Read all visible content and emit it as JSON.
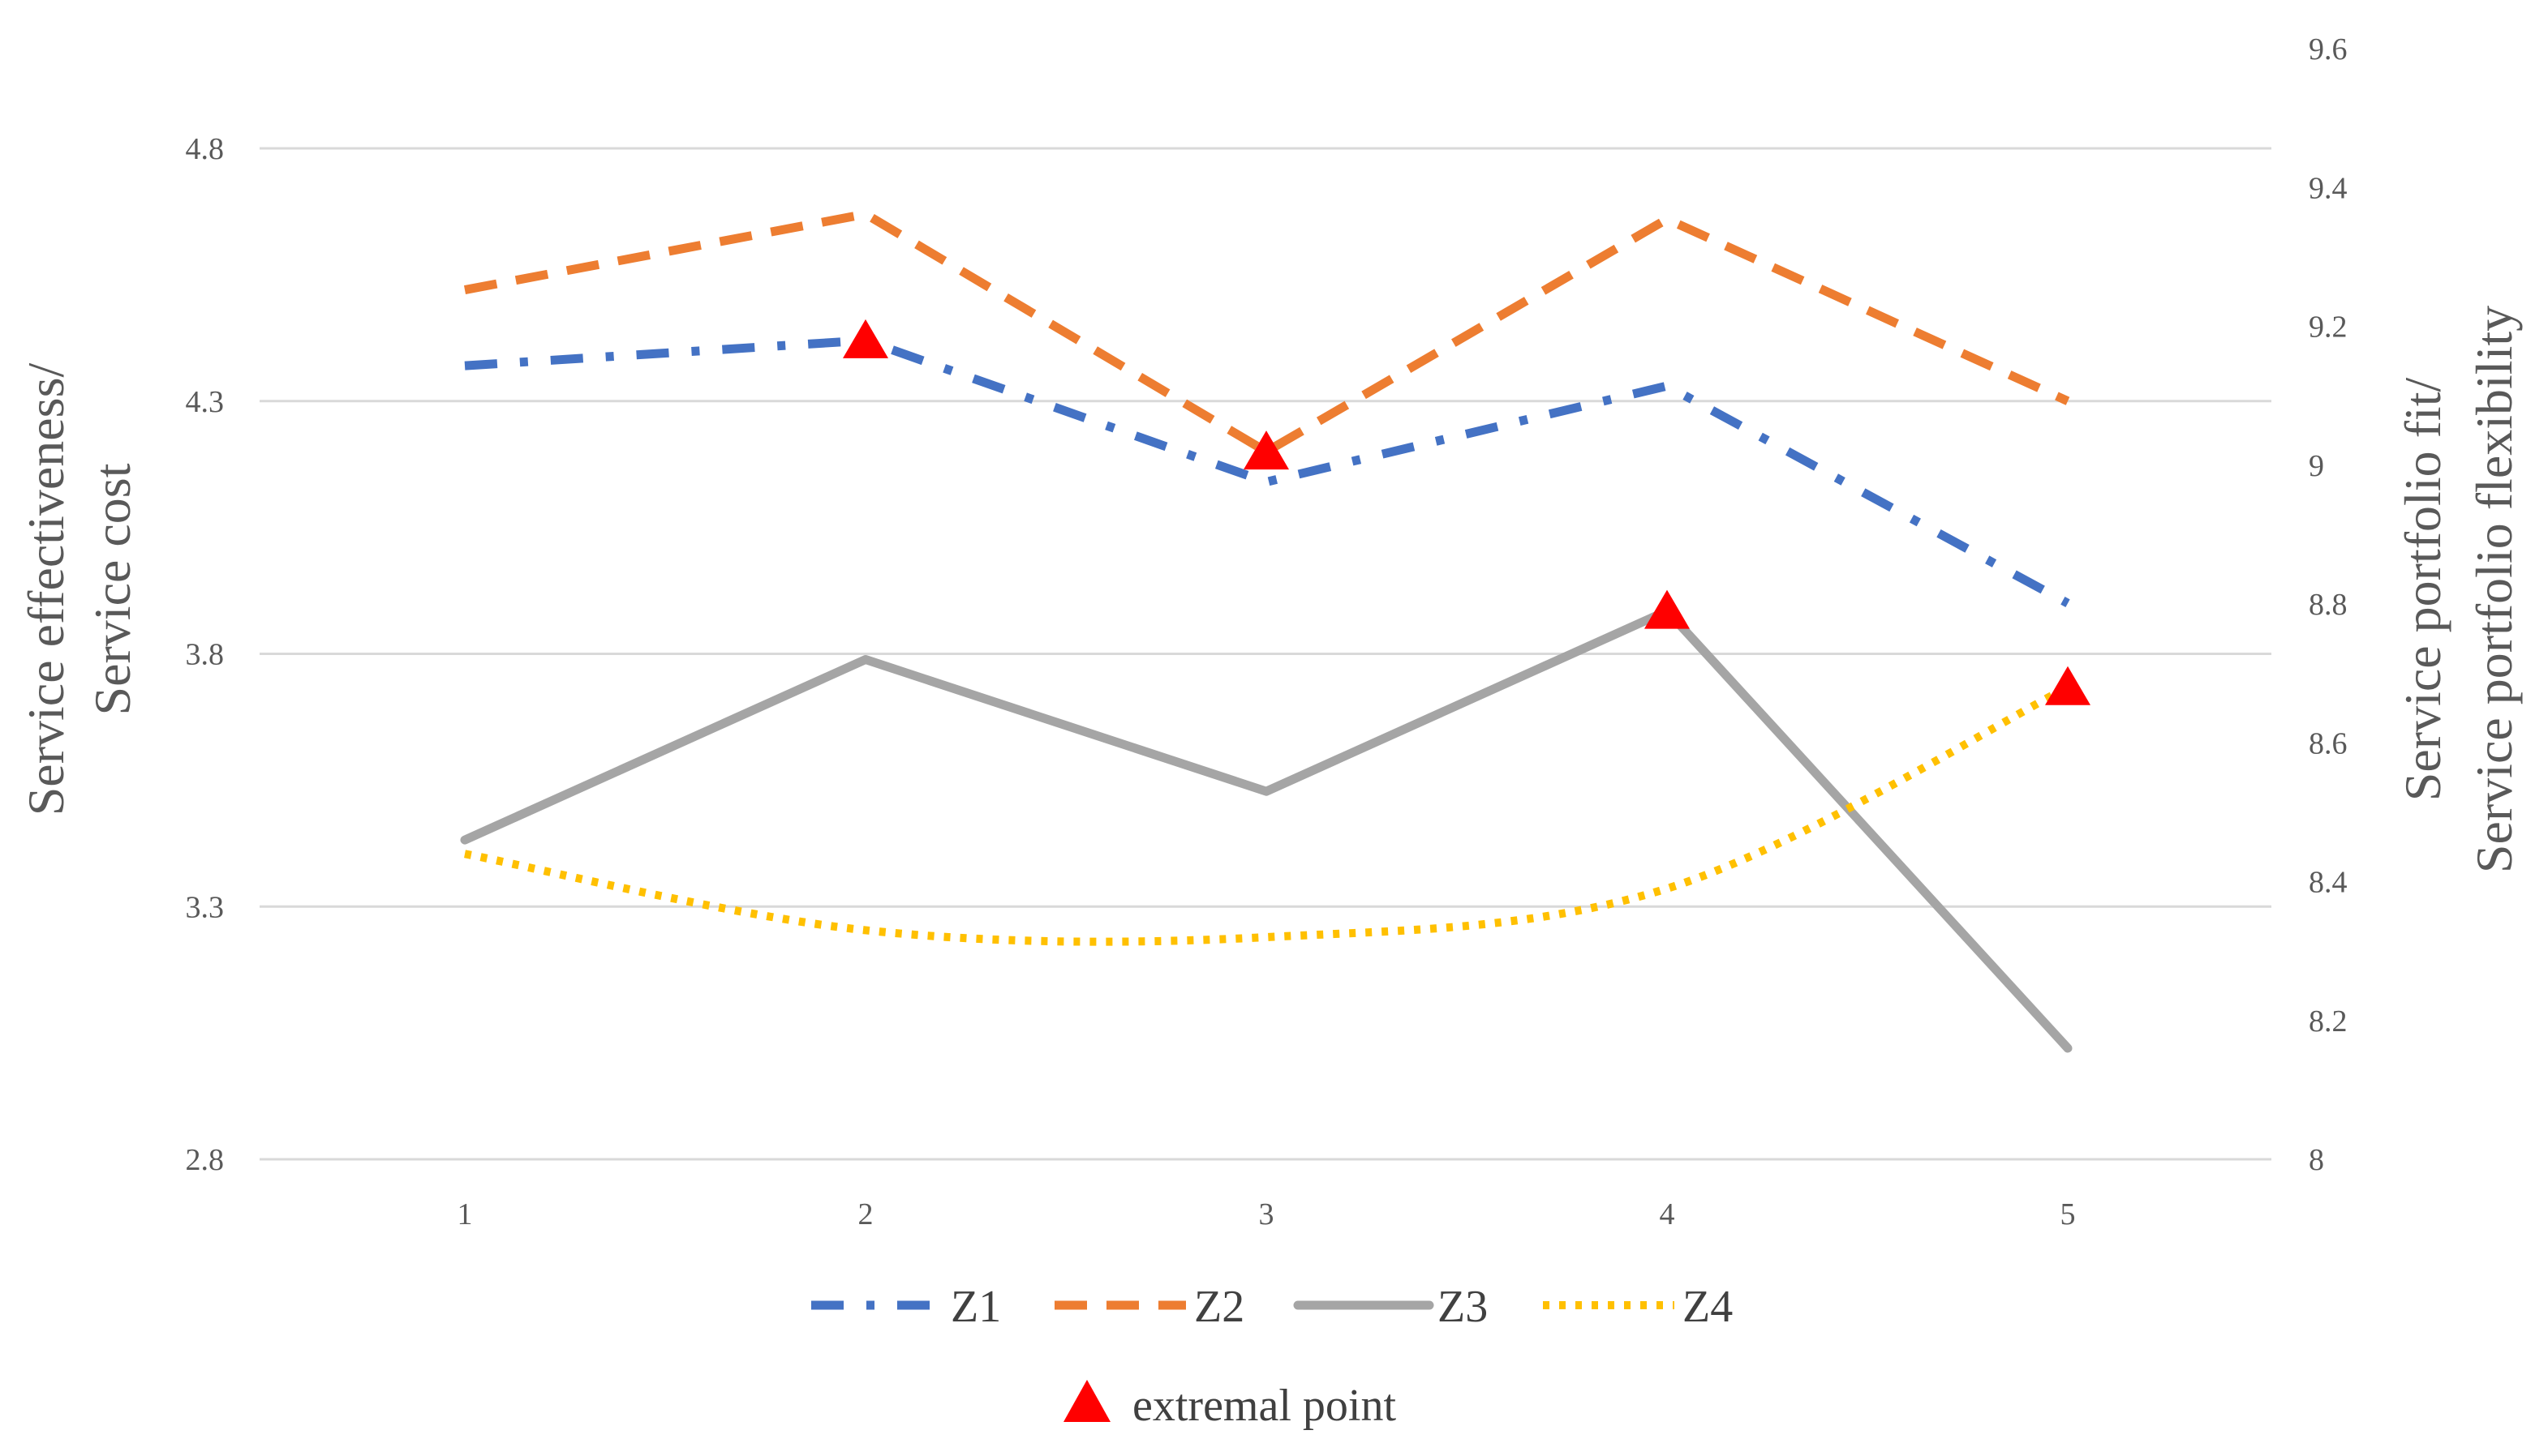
{
  "chart_data": {
    "type": "line",
    "categories": [
      "1",
      "2",
      "3",
      "4",
      "5"
    ],
    "left_axis": {
      "title_lines": [
        "Service effectiveness/",
        "Service cost"
      ],
      "range": [
        2.8,
        4.8
      ],
      "ticks": [
        2.8,
        3.3,
        3.8,
        4.3,
        4.8
      ],
      "tick_labels": [
        "2.8",
        "3.3",
        "3.8",
        "4.3",
        "4.8"
      ]
    },
    "right_axis": {
      "title_lines": [
        "Service portfolio fit/",
        "Service portfolio flexibility"
      ],
      "range": [
        8,
        9.6
      ],
      "ticks": [
        8,
        8.2,
        8.4,
        8.6,
        8.8,
        9,
        9.2,
        9.4,
        9.6
      ],
      "tick_labels": [
        "8",
        "8.2",
        "8.4",
        "8.6",
        "8.8",
        "9",
        "9.2",
        "9.4",
        "9.6"
      ]
    },
    "grid": true,
    "legend_placement": "bottom",
    "series": [
      {
        "name": "Z1",
        "axis": "left",
        "values": [
          4.37,
          4.42,
          4.14,
          4.33,
          3.9
        ],
        "color": "#4472C4",
        "style": "dash-dot"
      },
      {
        "name": "Z2",
        "axis": "left",
        "values": [
          4.52,
          4.67,
          4.2,
          4.66,
          4.3
        ],
        "color": "#ED7D31",
        "style": "dashed"
      },
      {
        "name": "Z3",
        "axis": "right",
        "values": [
          8.46,
          8.72,
          8.53,
          8.79,
          8.16
        ],
        "color": "#A5A5A5",
        "style": "solid"
      },
      {
        "name": "Z4",
        "axis": "right",
        "values": [
          8.44,
          8.33,
          8.32,
          8.39,
          8.68
        ],
        "color": "#FFC000",
        "style": "dotted"
      }
    ],
    "extremal_points": [
      {
        "series": "Z1",
        "category": "2"
      },
      {
        "series": "Z2",
        "category": "3"
      },
      {
        "series": "Z3",
        "category": "4"
      },
      {
        "series": "Z4",
        "category": "5"
      }
    ],
    "extremal_legend_label": "extremal point",
    "extremal_color": "#FF0000"
  }
}
